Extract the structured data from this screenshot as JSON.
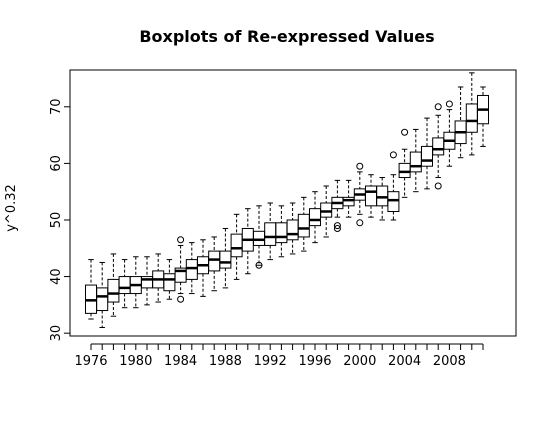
{
  "chart_data": {
    "type": "boxplot",
    "title": "Boxplots of Re-expressed Values",
    "xlabel": "",
    "ylabel": "y^0.32",
    "ylim": [
      29.5,
      76.5
    ],
    "yticks": [
      30,
      40,
      50,
      60,
      70
    ],
    "xtick_labels": [
      "1976",
      "1980",
      "1984",
      "1988",
      "1992",
      "1996",
      "2000",
      "2004",
      "2008"
    ],
    "grid": false,
    "series": [
      {
        "year": 1976,
        "min": 32.5,
        "q1": 33.5,
        "median": 35.8,
        "q3": 38.5,
        "max": 43.0,
        "outliers": []
      },
      {
        "year": 1977,
        "min": 31.0,
        "q1": 34.0,
        "median": 36.5,
        "q3": 38.0,
        "max": 42.5,
        "outliers": []
      },
      {
        "year": 1978,
        "min": 33.0,
        "q1": 35.5,
        "median": 37.0,
        "q3": 39.5,
        "max": 44.0,
        "outliers": []
      },
      {
        "year": 1979,
        "min": 34.5,
        "q1": 37.0,
        "median": 38.0,
        "q3": 40.0,
        "max": 43.0,
        "outliers": []
      },
      {
        "year": 1980,
        "min": 34.5,
        "q1": 37.0,
        "median": 38.5,
        "q3": 40.0,
        "max": 43.5,
        "outliers": []
      },
      {
        "year": 1981,
        "min": 35.0,
        "q1": 38.0,
        "median": 39.5,
        "q3": 40.0,
        "max": 43.5,
        "outliers": []
      },
      {
        "year": 1982,
        "min": 35.5,
        "q1": 38.0,
        "median": 39.5,
        "q3": 41.0,
        "max": 44.0,
        "outliers": []
      },
      {
        "year": 1983,
        "min": 36.0,
        "q1": 37.5,
        "median": 39.5,
        "q3": 40.5,
        "max": 43.0,
        "outliers": []
      },
      {
        "year": 1984,
        "min": 37.0,
        "q1": 39.0,
        "median": 41.0,
        "q3": 41.5,
        "max": 45.5,
        "outliers": [
          46.5,
          36.0
        ]
      },
      {
        "year": 1985,
        "min": 37.0,
        "q1": 39.5,
        "median": 41.5,
        "q3": 43.0,
        "max": 46.0,
        "outliers": []
      },
      {
        "year": 1986,
        "min": 36.5,
        "q1": 40.5,
        "median": 42.0,
        "q3": 43.5,
        "max": 46.5,
        "outliers": []
      },
      {
        "year": 1987,
        "min": 37.5,
        "q1": 41.0,
        "median": 43.0,
        "q3": 44.5,
        "max": 47.0,
        "outliers": []
      },
      {
        "year": 1988,
        "min": 38.0,
        "q1": 41.5,
        "median": 42.5,
        "q3": 44.5,
        "max": 48.5,
        "outliers": []
      },
      {
        "year": 1989,
        "min": 39.5,
        "q1": 43.5,
        "median": 45.0,
        "q3": 47.5,
        "max": 51.0,
        "outliers": []
      },
      {
        "year": 1990,
        "min": 40.5,
        "q1": 44.5,
        "median": 46.5,
        "q3": 48.5,
        "max": 52.0,
        "outliers": []
      },
      {
        "year": 1991,
        "min": 42.0,
        "q1": 45.5,
        "median": 46.5,
        "q3": 48.0,
        "max": 52.5,
        "outliers": [
          42.0
        ]
      },
      {
        "year": 1992,
        "min": 43.0,
        "q1": 45.5,
        "median": 47.0,
        "q3": 49.5,
        "max": 53.0,
        "outliers": []
      },
      {
        "year": 1993,
        "min": 43.5,
        "q1": 46.0,
        "median": 47.0,
        "q3": 49.5,
        "max": 52.5,
        "outliers": []
      },
      {
        "year": 1994,
        "min": 44.0,
        "q1": 46.5,
        "median": 47.5,
        "q3": 50.0,
        "max": 53.0,
        "outliers": []
      },
      {
        "year": 1995,
        "min": 44.5,
        "q1": 47.0,
        "median": 48.5,
        "q3": 51.0,
        "max": 54.0,
        "outliers": []
      },
      {
        "year": 1996,
        "min": 46.0,
        "q1": 49.0,
        "median": 50.0,
        "q3": 52.0,
        "max": 55.0,
        "outliers": []
      },
      {
        "year": 1997,
        "min": 47.0,
        "q1": 50.5,
        "median": 51.5,
        "q3": 53.0,
        "max": 56.0,
        "outliers": []
      },
      {
        "year": 1998,
        "min": 50.5,
        "q1": 52.0,
        "median": 53.0,
        "q3": 54.0,
        "max": 57.0,
        "outliers": [
          49.0,
          48.5
        ]
      },
      {
        "year": 1999,
        "min": 50.5,
        "q1": 52.5,
        "median": 53.5,
        "q3": 54.0,
        "max": 57.0,
        "outliers": []
      },
      {
        "year": 2000,
        "min": 51.0,
        "q1": 53.5,
        "median": 54.5,
        "q3": 55.5,
        "max": 58.5,
        "outliers": [
          59.5,
          49.5
        ]
      },
      {
        "year": 2001,
        "min": 50.5,
        "q1": 52.5,
        "median": 55.0,
        "q3": 56.0,
        "max": 58.0,
        "outliers": []
      },
      {
        "year": 2002,
        "min": 50.0,
        "q1": 52.5,
        "median": 54.0,
        "q3": 56.0,
        "max": 57.5,
        "outliers": []
      },
      {
        "year": 2003,
        "min": 50.0,
        "q1": 51.5,
        "median": 53.5,
        "q3": 55.0,
        "max": 58.0,
        "outliers": [
          61.5
        ]
      },
      {
        "year": 2004,
        "min": 54.0,
        "q1": 57.5,
        "median": 58.5,
        "q3": 60.0,
        "max": 62.5,
        "outliers": [
          65.5
        ]
      },
      {
        "year": 2005,
        "min": 55.0,
        "q1": 58.5,
        "median": 59.5,
        "q3": 62.0,
        "max": 66.0,
        "outliers": []
      },
      {
        "year": 2006,
        "min": 55.5,
        "q1": 59.5,
        "median": 60.5,
        "q3": 63.0,
        "max": 68.0,
        "outliers": []
      },
      {
        "year": 2007,
        "min": 57.5,
        "q1": 61.5,
        "median": 62.5,
        "q3": 64.5,
        "max": 68.5,
        "outliers": [
          70.0,
          56.0
        ]
      },
      {
        "year": 2008,
        "min": 59.5,
        "q1": 62.5,
        "median": 64.0,
        "q3": 65.5,
        "max": 69.5,
        "outliers": [
          70.5
        ]
      },
      {
        "year": 2009,
        "min": 61.0,
        "q1": 63.5,
        "median": 65.5,
        "q3": 67.5,
        "max": 73.5,
        "outliers": []
      },
      {
        "year": 2010,
        "min": 61.5,
        "q1": 65.5,
        "median": 67.5,
        "q3": 70.5,
        "max": 76.0,
        "outliers": []
      },
      {
        "year": 2011,
        "min": 63.0,
        "q1": 67.0,
        "median": 69.5,
        "q3": 72.0,
        "max": 73.5,
        "outliers": []
      }
    ]
  }
}
